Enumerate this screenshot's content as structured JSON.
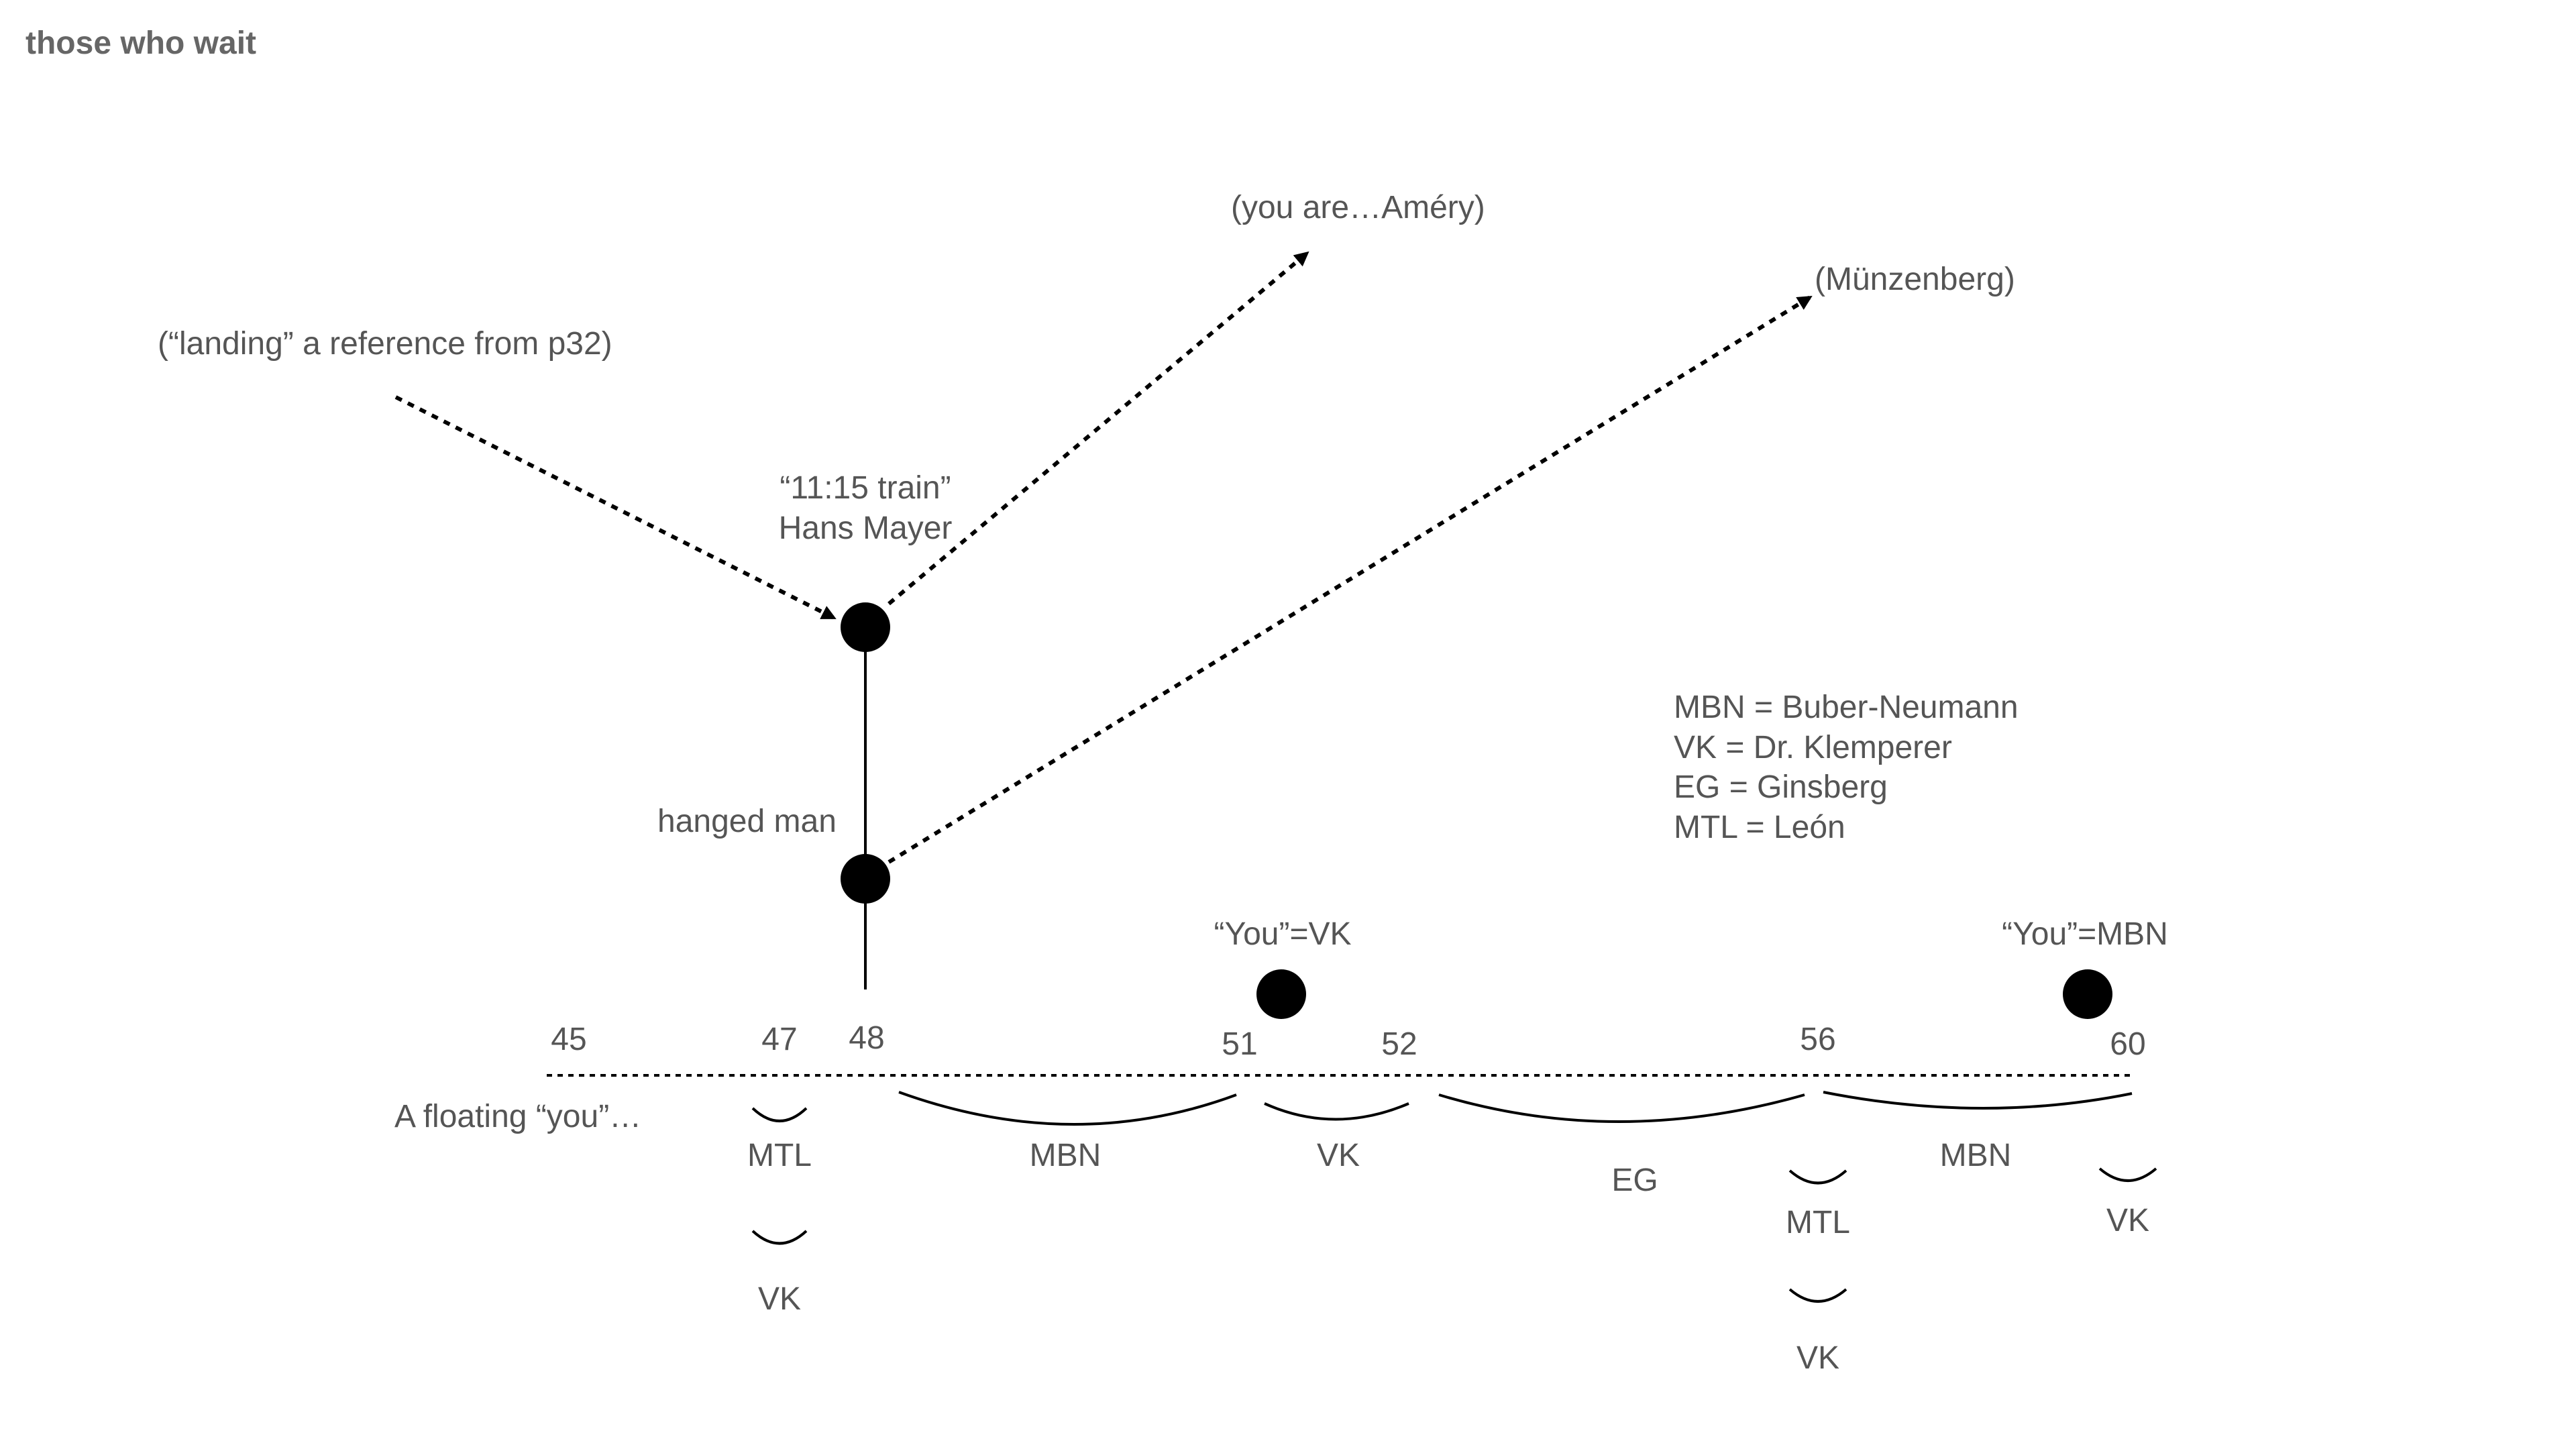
{
  "title": "those who wait",
  "references": {
    "landing": "(“landing” a reference from p32)",
    "amery": "(you are…Améry)",
    "munzenberg": "(Münzenberg)"
  },
  "nodes": {
    "train_line1": "“11:15 train”",
    "train_line2": "Hans Mayer",
    "hanged_man": "hanged man",
    "you_vk": "“You”=VK",
    "you_mbn": "“You”=MBN"
  },
  "legend": [
    "MBN = Buber-Neumann",
    "VK = Dr. Klemperer",
    "EG = Ginsberg",
    "MTL = León"
  ],
  "timeline": {
    "floating_label": "A floating “you”…",
    "pages": [
      "45",
      "47",
      "48",
      "51",
      "52",
      "56",
      "60"
    ]
  },
  "brace_labels": {
    "mtl_47": "MTL",
    "vk_47": "VK",
    "mbn_48_51": "MBN",
    "vk_51_52": "VK",
    "eg_52_56": "EG",
    "mtl_56": "MTL",
    "vk_56": "VK",
    "mbn_56_60": "MBN",
    "vk_60": "VK"
  }
}
